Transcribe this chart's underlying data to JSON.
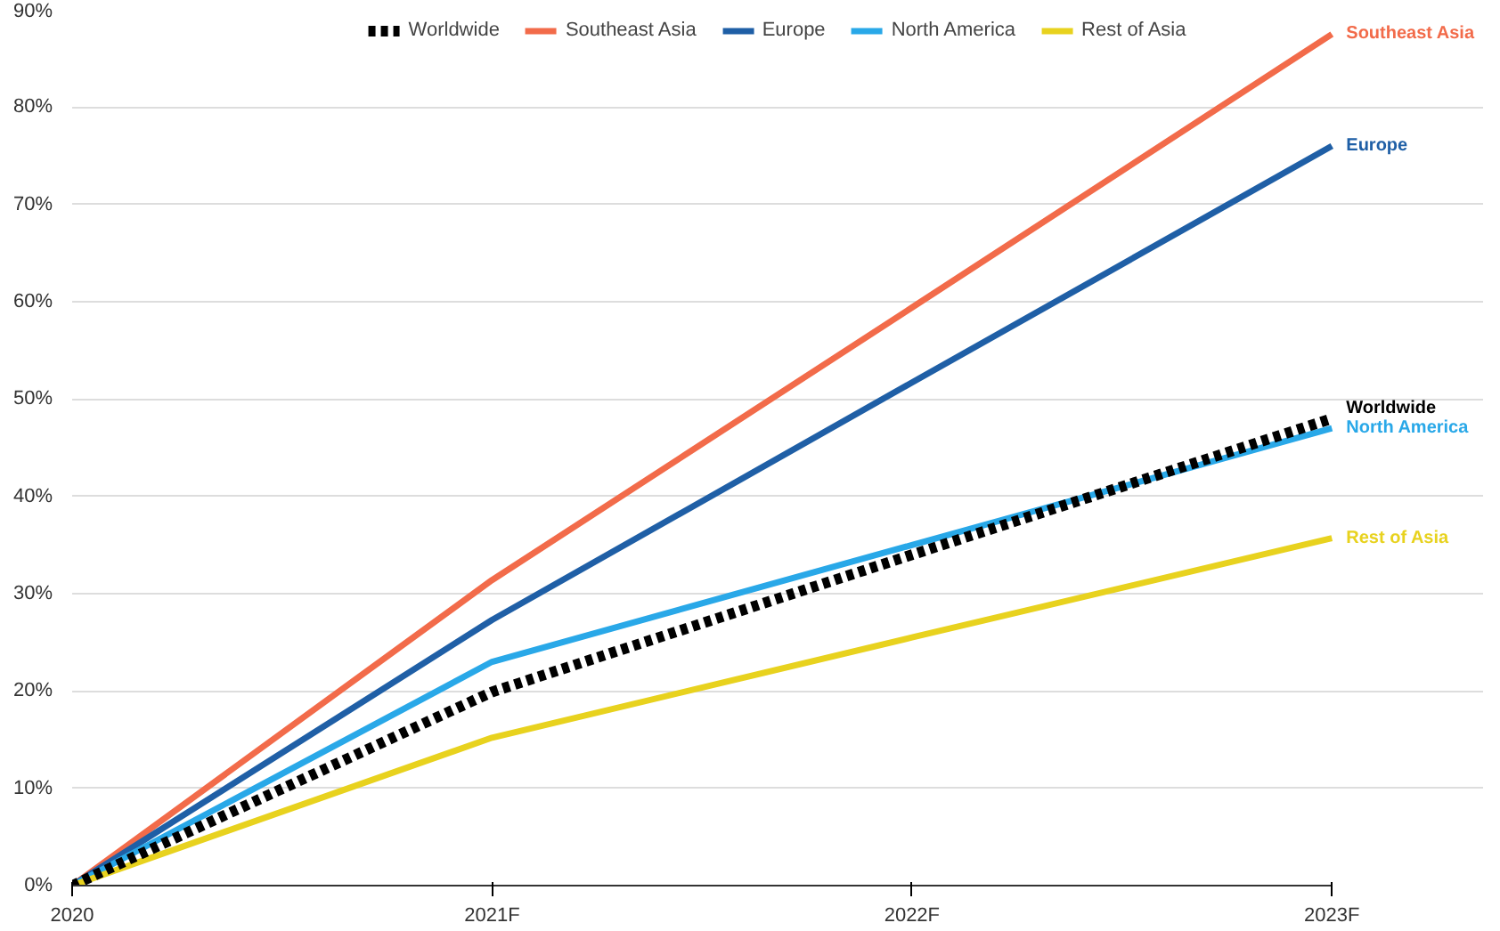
{
  "chart_data": {
    "type": "line",
    "categories": [
      "2020",
      "2021F",
      "2022F",
      "2023F"
    ],
    "series": [
      {
        "name": "Worldwide",
        "color": "#000000",
        "line_style": "dashed",
        "values": [
          0,
          19.9,
          34,
          48
        ]
      },
      {
        "name": "Southeast Asia",
        "color": "#f26b4a",
        "values": [
          0,
          31.4,
          59.4,
          87.5
        ]
      },
      {
        "name": "Europe",
        "color": "#1f5fa6",
        "values": [
          0,
          27.3,
          51.7,
          76
        ]
      },
      {
        "name": "North America",
        "color": "#29a8e8",
        "values": [
          0,
          23,
          35,
          47
        ]
      },
      {
        "name": "Rest of Asia",
        "color": "#e8d21e",
        "values": [
          0,
          15.2,
          25.5,
          35.7
        ]
      }
    ],
    "ylim": [
      0,
      90
    ],
    "yticks": [
      {
        "value": 0,
        "label": "0%"
      },
      {
        "value": 10,
        "label": "10%"
      },
      {
        "value": 20,
        "label": "20%"
      },
      {
        "value": 30,
        "label": "30%"
      },
      {
        "value": 40,
        "label": "40%"
      },
      {
        "value": 50,
        "label": "50%"
      },
      {
        "value": 60,
        "label": "60%"
      },
      {
        "value": 70,
        "label": "70%"
      },
      {
        "value": 80,
        "label": "80%"
      },
      {
        "value": 90,
        "label": "90%"
      }
    ],
    "grid": "y",
    "legend": "top",
    "line_style": "solid"
  }
}
